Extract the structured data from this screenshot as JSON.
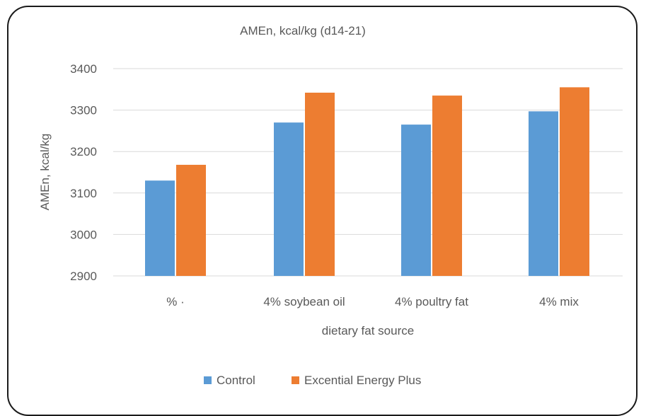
{
  "chart_data": {
    "type": "bar",
    "title": "AMEn, kcal/kg (d14-21)",
    "xlabel": "dietary fat source",
    "ylabel": "AMEn, kcal/kg",
    "categories": [
      "% ·",
      "4% soybean oil",
      "4% poultry fat",
      "4% mix"
    ],
    "series": [
      {
        "name": "Control",
        "color": "#5b9bd5",
        "values": [
          3130,
          3270,
          3265,
          3297
        ]
      },
      {
        "name": "Excential Energy Plus",
        "color": "#ed7d31",
        "values": [
          3168,
          3342,
          3335,
          3355
        ]
      }
    ],
    "ylim": [
      2900,
      3400
    ],
    "yticks": [
      2900,
      3000,
      3100,
      3200,
      3300,
      3400
    ],
    "grid": true,
    "legend": "bottom"
  }
}
